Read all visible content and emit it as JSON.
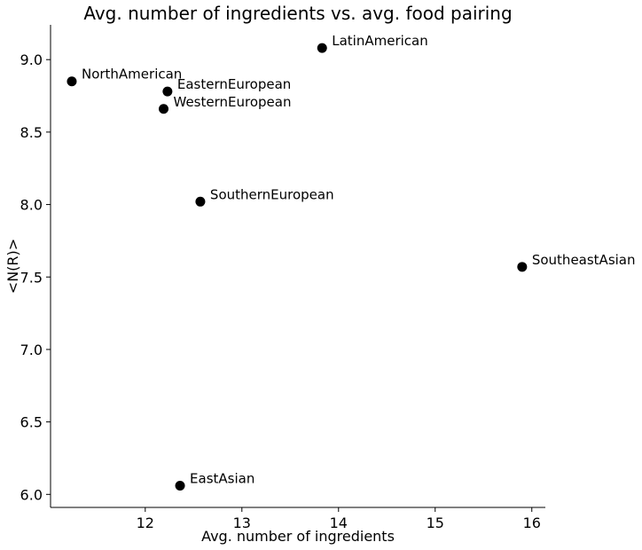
{
  "chart_data": {
    "type": "scatter",
    "title": "Avg. number of ingredients vs. avg. food pairing",
    "xlabel": "Avg. number of ingredients",
    "ylabel": "<N(R)>",
    "xlim": [
      11.02,
      16.14
    ],
    "ylim": [
      5.91,
      9.24
    ],
    "x_ticks": [
      12,
      13,
      14,
      15,
      16
    ],
    "y_ticks": [
      6.0,
      6.5,
      7.0,
      7.5,
      8.0,
      8.5,
      9.0
    ],
    "x_tick_labels": [
      "12",
      "13",
      "14",
      "15",
      "16"
    ],
    "y_tick_labels": [
      "6.0",
      "6.5",
      "7.0",
      "7.5",
      "8.0",
      "8.5",
      "9.0"
    ],
    "grid": false,
    "marker_color": "#000000",
    "points": [
      {
        "label": "LatinAmerican",
        "x": 13.83,
        "y": 9.08
      },
      {
        "label": "NorthAmerican",
        "x": 11.24,
        "y": 8.85
      },
      {
        "label": "EasternEuropean",
        "x": 12.23,
        "y": 8.78
      },
      {
        "label": "WesternEuropean",
        "x": 12.19,
        "y": 8.66
      },
      {
        "label": "SouthernEuropean",
        "x": 12.57,
        "y": 8.02
      },
      {
        "label": "SoutheastAsian",
        "x": 15.9,
        "y": 7.57
      },
      {
        "label": "EastAsian",
        "x": 12.36,
        "y": 6.06
      }
    ]
  }
}
